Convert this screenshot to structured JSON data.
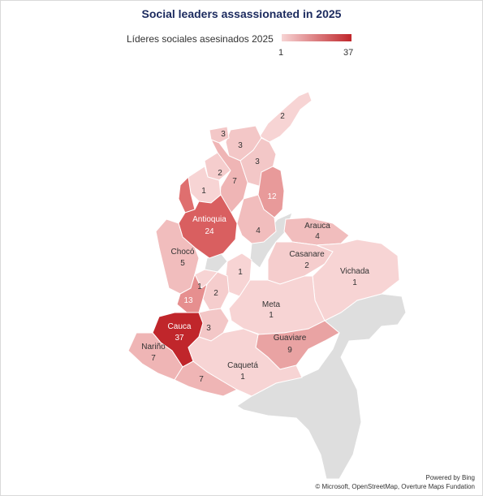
{
  "title": "Social leaders assassionated in 2025",
  "legend": {
    "label": "Líderes sociales asesinados 2025",
    "min": "1",
    "max": "37",
    "color_low": "#f7d4d4",
    "color_high": "#c0262b"
  },
  "attribution": {
    "powered": "Powered by Bing",
    "credits": "© Microsoft, OpenStreetMap, Overture Maps Fundation"
  },
  "regions": [
    {
      "id": "la-guajira",
      "name": "",
      "value": "2"
    },
    {
      "id": "magdalena",
      "name": "",
      "value": "3"
    },
    {
      "id": "atlantico",
      "name": "",
      "value": "3"
    },
    {
      "id": "cesar",
      "name": "",
      "value": "3"
    },
    {
      "id": "sucre",
      "name": "",
      "value": "2"
    },
    {
      "id": "bolivar",
      "name": "",
      "value": "7"
    },
    {
      "id": "cordoba",
      "name": "",
      "value": "1"
    },
    {
      "id": "norte-santander",
      "name": "",
      "value": "12"
    },
    {
      "id": "antioquia",
      "name": "Antioquia",
      "value": "24"
    },
    {
      "id": "santander",
      "name": "",
      "value": "4"
    },
    {
      "id": "arauca",
      "name": "Arauca",
      "value": "4"
    },
    {
      "id": "casanare",
      "name": "Casanare",
      "value": "2"
    },
    {
      "id": "vichada",
      "name": "Vichada",
      "value": "1"
    },
    {
      "id": "choco",
      "name": "Chocó",
      "value": "5"
    },
    {
      "id": "caldas",
      "name": "",
      "value": "1"
    },
    {
      "id": "cundinamarca",
      "name": "",
      "value": "1"
    },
    {
      "id": "quindio",
      "name": "",
      "value": "2"
    },
    {
      "id": "valle",
      "name": "",
      "value": "13"
    },
    {
      "id": "meta",
      "name": "Meta",
      "value": "1"
    },
    {
      "id": "cauca",
      "name": "Cauca",
      "value": "37"
    },
    {
      "id": "huila",
      "name": "",
      "value": "3"
    },
    {
      "id": "guaviare",
      "name": "Guaviare",
      "value": "9"
    },
    {
      "id": "narino",
      "name": "Nariño",
      "value": "7"
    },
    {
      "id": "putumayo",
      "name": "",
      "value": "7"
    },
    {
      "id": "caqueta",
      "name": "Caquetá",
      "value": "1"
    }
  ]
}
